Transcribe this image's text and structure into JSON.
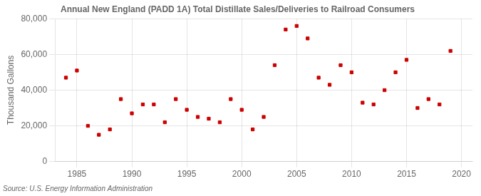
{
  "chart_data": {
    "type": "scatter",
    "title": "Annual New England (PADD 1A) Total Distillate Sales/Deliveries to Railroad Consumers",
    "ylabel": "Thousand Gallons",
    "source": "Source: U.S. Energy Information Administration",
    "x": [
      1984,
      1985,
      1986,
      1987,
      1988,
      1989,
      1990,
      1991,
      1992,
      1993,
      1994,
      1995,
      1996,
      1997,
      1998,
      1999,
      2000,
      2001,
      2002,
      2003,
      2004,
      2005,
      2006,
      2007,
      2008,
      2009,
      2010,
      2011,
      2012,
      2013,
      2014,
      2015,
      2016,
      2017,
      2018,
      2019
    ],
    "values": [
      47000,
      51000,
      20000,
      15000,
      18000,
      35000,
      27000,
      32000,
      32000,
      22000,
      35000,
      29000,
      25000,
      24000,
      22000,
      35000,
      29000,
      18000,
      25000,
      54000,
      74000,
      76000,
      69000,
      47000,
      43000,
      54000,
      50000,
      33000,
      32000,
      40000,
      50000,
      57000,
      30000,
      35000,
      32000,
      62000
    ],
    "color": "#cc0000",
    "marker": "square",
    "xlim": [
      1983,
      2021
    ],
    "xticks": [
      1985,
      1990,
      1995,
      2000,
      2005,
      2010,
      2015,
      2020
    ],
    "ylim": [
      0,
      80000
    ],
    "yticks": [
      0,
      {
        "value": 20000,
        "label": "20,000"
      },
      {
        "value": 40000,
        "label": "40,000"
      },
      {
        "value": 60000,
        "label": "60,000"
      },
      {
        "value": 80000,
        "label": "80,000"
      }
    ],
    "grid": true
  }
}
